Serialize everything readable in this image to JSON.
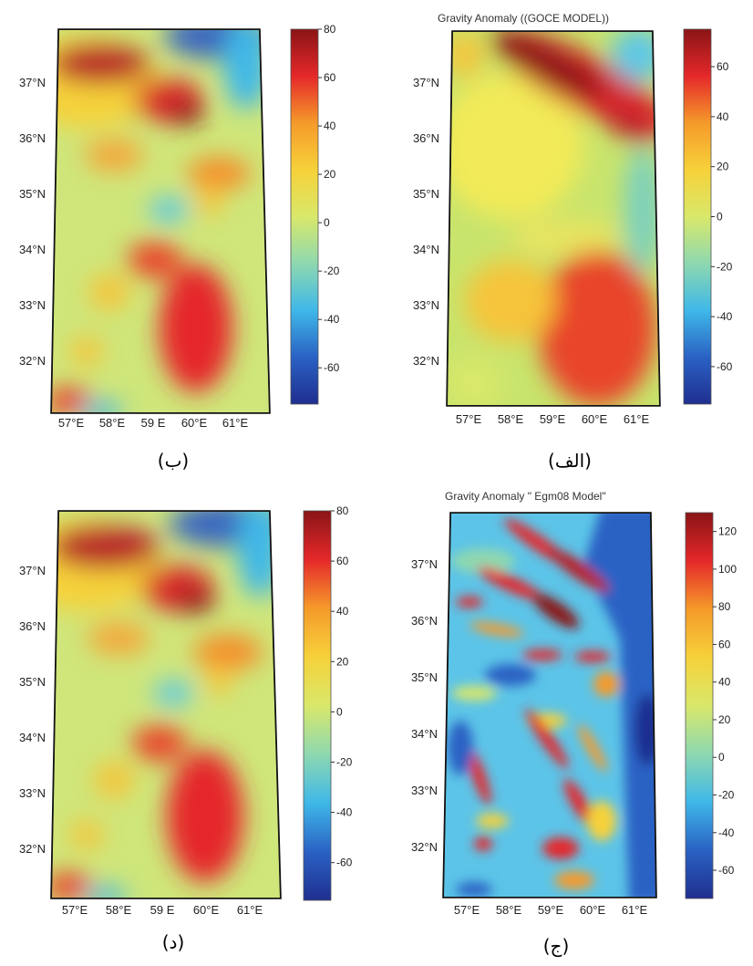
{
  "panels": [
    {
      "title": "",
      "caption": "(ب)",
      "colorbar_ticks": [
        80,
        60,
        40,
        20,
        0,
        -20,
        -40,
        -60
      ],
      "colorbar_range": [
        -75,
        80
      ],
      "y_ticks": [
        "37°N",
        "36°N",
        "35°N",
        "34°N",
        "33°N",
        "32°N"
      ],
      "x_ticks": [
        "57°E",
        "58°E",
        "59 E",
        "60°E",
        "61°E"
      ]
    },
    {
      "title": "Gravity Anomaly ((GOCE MODEL))",
      "caption": "(الف)",
      "colorbar_ticks": [
        60,
        40,
        20,
        0,
        -20,
        -40,
        -60
      ],
      "colorbar_range": [
        -75,
        75
      ],
      "y_ticks": [
        "37°N",
        "36°N",
        "35°N",
        "34°N",
        "33°N",
        "32°N"
      ],
      "x_ticks": [
        "57°E",
        "58°E",
        "59°E",
        "60°E",
        "61°E"
      ]
    },
    {
      "title": "",
      "caption": "(د)",
      "colorbar_ticks": [
        80,
        60,
        40,
        20,
        0,
        -20,
        -40,
        -60
      ],
      "colorbar_range": [
        -75,
        80
      ],
      "y_ticks": [
        "37°N",
        "36°N",
        "35°N",
        "34°N",
        "33°N",
        "32°N"
      ],
      "x_ticks": [
        "57°E",
        "58°E",
        "59 E",
        "60°E",
        "61°E"
      ]
    },
    {
      "title": "Gravity Anomaly \" Egm08 Model\"",
      "caption": "(ج)",
      "colorbar_ticks": [
        120,
        100,
        80,
        60,
        40,
        20,
        0,
        -20,
        -40,
        -60
      ],
      "colorbar_range": [
        -75,
        130
      ],
      "y_ticks": [
        "37°N",
        "36°N",
        "35°N",
        "34°N",
        "33°N",
        "32°N"
      ],
      "x_ticks": [
        "57°E",
        "58°E",
        "59°E",
        "60°E",
        "61°E"
      ]
    }
  ],
  "colormap": [
    "#1f2f8f",
    "#2a62c4",
    "#3fb8e8",
    "#8ed8b0",
    "#d9e86a",
    "#f6d13a",
    "#f59a2a",
    "#e5282a",
    "#8a1416"
  ],
  "chart_data": [
    {
      "type": "heatmap",
      "title": "",
      "x_ticks": [
        "57°E",
        "58°E",
        "59 E",
        "60°E",
        "61°E"
      ],
      "y_ticks": [
        "37°N",
        "36°N",
        "35°N",
        "34°N",
        "33°N",
        "32°N"
      ],
      "colorbar": [
        80,
        60,
        40,
        20,
        0,
        -20,
        -40,
        -60
      ]
    },
    {
      "type": "heatmap",
      "title": "Gravity Anomaly ((GOCE MODEL))",
      "x_ticks": [
        "57°E",
        "58°E",
        "59°E",
        "60°E",
        "61°E"
      ],
      "y_ticks": [
        "37°N",
        "36°N",
        "35°N",
        "34°N",
        "33°N",
        "32°N"
      ],
      "colorbar": [
        60,
        40,
        20,
        0,
        -20,
        -40,
        -60
      ]
    },
    {
      "type": "heatmap",
      "title": "",
      "x_ticks": [
        "57°E",
        "58°E",
        "59 E",
        "60°E",
        "61°E"
      ],
      "y_ticks": [
        "37°N",
        "36°N",
        "35°N",
        "34°N",
        "33°N",
        "32°N"
      ],
      "colorbar": [
        80,
        60,
        40,
        20,
        0,
        -20,
        -40,
        -60
      ]
    },
    {
      "type": "heatmap",
      "title": "Gravity Anomaly \" Egm08 Model\"",
      "x_ticks": [
        "57°E",
        "58°E",
        "59°E",
        "60°E",
        "61°E"
      ],
      "y_ticks": [
        "37°N",
        "36°N",
        "35°N",
        "34°N",
        "33°N",
        "32°N"
      ],
      "colorbar": [
        120,
        100,
        80,
        60,
        40,
        20,
        0,
        -20,
        -40,
        -60
      ]
    }
  ]
}
